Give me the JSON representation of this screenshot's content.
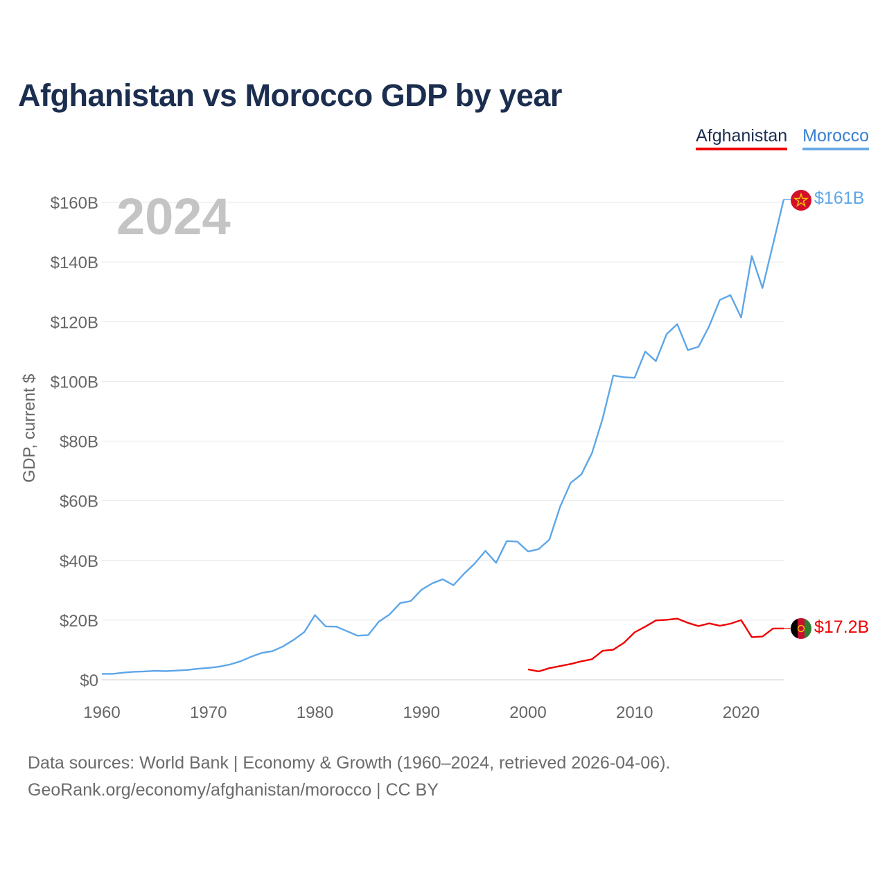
{
  "title": "Afghanistan vs Morocco GDP by year",
  "legend": [
    {
      "label": "Afghanistan",
      "color": "#ee0000"
    },
    {
      "label": "Morocco",
      "color": "#5da6e8"
    }
  ],
  "year_label": "2024",
  "footer": {
    "line1": "Data sources: World Bank | Economy & Growth (1960–2024, retrieved 2026-04-06).",
    "line2": "GeoRank.org/economy/afghanistan/morocco | CC BY"
  },
  "chart_data": {
    "type": "line",
    "ylabel": "GDP, current $",
    "xlabel": "",
    "xlim": [
      1960,
      2024
    ],
    "ylim": [
      0,
      160
    ],
    "y_unit": "billion US$",
    "y_ticks": [
      {
        "value": 0,
        "label": "$0"
      },
      {
        "value": 20,
        "label": "$20B"
      },
      {
        "value": 40,
        "label": "$40B"
      },
      {
        "value": 60,
        "label": "$60B"
      },
      {
        "value": 80,
        "label": "$80B"
      },
      {
        "value": 100,
        "label": "$100B"
      },
      {
        "value": 120,
        "label": "$120B"
      },
      {
        "value": 140,
        "label": "$140B"
      },
      {
        "value": 160,
        "label": "$160B"
      }
    ],
    "x_ticks": [
      {
        "value": 1960,
        "label": "1960"
      },
      {
        "value": 1970,
        "label": "1970"
      },
      {
        "value": 1980,
        "label": "1980"
      },
      {
        "value": 1990,
        "label": "1990"
      },
      {
        "value": 2000,
        "label": "2000"
      },
      {
        "value": 2010,
        "label": "2010"
      },
      {
        "value": 2020,
        "label": "2020"
      }
    ],
    "grid": true,
    "series": [
      {
        "name": "Morocco",
        "color": "#5da6e8",
        "end_label": "$161B",
        "x": [
          1960,
          1961,
          1962,
          1963,
          1964,
          1965,
          1966,
          1967,
          1968,
          1969,
          1970,
          1971,
          1972,
          1973,
          1974,
          1975,
          1976,
          1977,
          1978,
          1979,
          1980,
          1981,
          1982,
          1983,
          1984,
          1985,
          1986,
          1987,
          1988,
          1989,
          1990,
          1991,
          1992,
          1993,
          1994,
          1995,
          1996,
          1997,
          1998,
          1999,
          2000,
          2001,
          2002,
          2003,
          2004,
          2005,
          2006,
          2007,
          2008,
          2009,
          2010,
          2011,
          2012,
          2013,
          2014,
          2015,
          2016,
          2017,
          2018,
          2019,
          2020,
          2021,
          2022,
          2023,
          2024
        ],
        "values": [
          2.0,
          2.0,
          2.4,
          2.7,
          2.8,
          3.0,
          2.9,
          3.1,
          3.3,
          3.7,
          4.0,
          4.4,
          5.1,
          6.2,
          7.7,
          9.0,
          9.6,
          11.2,
          13.4,
          16.0,
          21.7,
          17.9,
          17.8,
          16.3,
          14.8,
          15.0,
          19.5,
          21.9,
          25.7,
          26.4,
          30.2,
          32.3,
          33.7,
          31.7,
          35.6,
          39.0,
          43.2,
          39.2,
          46.5,
          46.3,
          43.0,
          43.8,
          47.0,
          57.9,
          66.0,
          68.8,
          76.0,
          87.5,
          102.0,
          101.4,
          101.2,
          110.0,
          106.8,
          115.8,
          119.2,
          110.5,
          111.6,
          118.5,
          127.3,
          128.9,
          121.4,
          142.0,
          131.3,
          146.0,
          161.0
        ]
      },
      {
        "name": "Afghanistan",
        "color": "#ee0000",
        "end_label": "$17.2B",
        "x": [
          2000,
          2001,
          2002,
          2003,
          2004,
          2005,
          2006,
          2007,
          2008,
          2009,
          2010,
          2011,
          2012,
          2013,
          2014,
          2015,
          2016,
          2017,
          2018,
          2019,
          2020,
          2021,
          2022,
          2023,
          2024
        ],
        "values": [
          3.5,
          2.8,
          3.9,
          4.6,
          5.3,
          6.2,
          6.9,
          9.7,
          10.1,
          12.4,
          15.9,
          17.8,
          19.9,
          20.1,
          20.5,
          19.1,
          18.0,
          18.9,
          18.1,
          18.8,
          20.0,
          14.3,
          14.5,
          17.2,
          17.2
        ]
      }
    ]
  }
}
